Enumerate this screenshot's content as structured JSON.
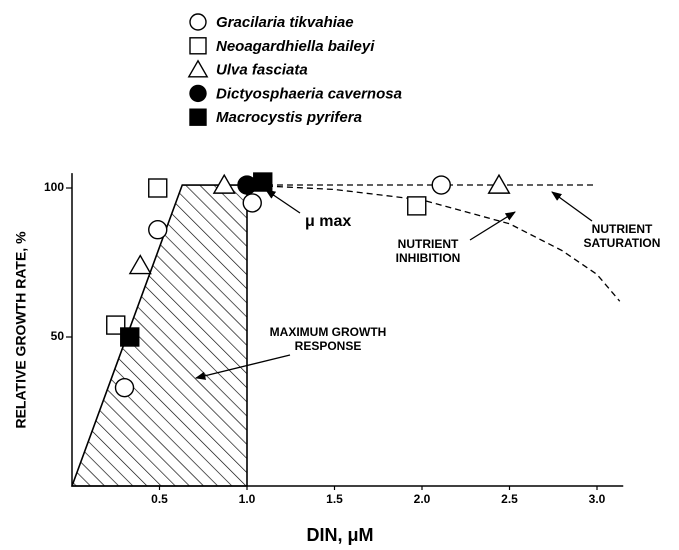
{
  "chart_data": {
    "type": "scatter",
    "xlabel": "DIN, μM",
    "ylabel": "RELATIVE GROWTH RATE, %",
    "xlim": [
      0,
      3.15
    ],
    "ylim": [
      0,
      105
    ],
    "xticks": [
      0.5,
      {
        "value": 1,
        "label": "1.0"
      },
      1.5,
      {
        "value": 2,
        "label": "2.0"
      },
      2.5,
      {
        "value": 3,
        "label": "3.0"
      }
    ],
    "yticks": [
      50,
      100
    ],
    "series": [
      {
        "name": "Gracilaria  tikvahiae",
        "marker": "circle",
        "filled": false,
        "x": [
          0.3,
          0.49,
          1.03,
          2.11
        ],
        "values": [
          33,
          86,
          95,
          101
        ]
      },
      {
        "name": "Neoagardhiella  baileyi",
        "marker": "square",
        "filled": false,
        "x": [
          0.25,
          0.49,
          1.97
        ],
        "values": [
          54,
          100,
          94
        ]
      },
      {
        "name": "Ulva  fasciata",
        "marker": "triangle",
        "filled": false,
        "x": [
          0.39,
          0.87,
          2.44
        ],
        "values": [
          74,
          101,
          101
        ]
      },
      {
        "name": "Dictyosphaeria  cavernosa",
        "marker": "circle",
        "filled": true,
        "x": [
          1.0
        ],
        "values": [
          101
        ]
      },
      {
        "name": "Macrocystis  pyrifera",
        "marker": "square",
        "filled": true,
        "x": [
          0.33,
          1.09
        ],
        "values": [
          50,
          102
        ]
      }
    ],
    "curves": [
      {
        "style": "hatched",
        "x": [
          0,
          0.63,
          1.0,
          1.0
        ],
        "values": [
          0,
          101,
          101,
          0
        ]
      },
      {
        "style": "dashed",
        "x": [
          1.0,
          3.0
        ],
        "values": [
          101,
          101
        ]
      },
      {
        "style": "dashed",
        "x": [
          1.0,
          1.5,
          2.0,
          2.5,
          2.8,
          3.0,
          3.13
        ],
        "values": [
          101,
          99.5,
          96,
          88,
          79,
          71,
          62
        ]
      }
    ],
    "annotations": [
      {
        "lines": [
          "μ max"
        ]
      },
      {
        "lines": [
          "NUTRIENT",
          "INHIBITION"
        ]
      },
      {
        "lines": [
          "NUTRIENT",
          "SATURATION"
        ]
      },
      {
        "lines": [
          "MAXIMUM GROWTH",
          "RESPONSE"
        ]
      }
    ]
  }
}
